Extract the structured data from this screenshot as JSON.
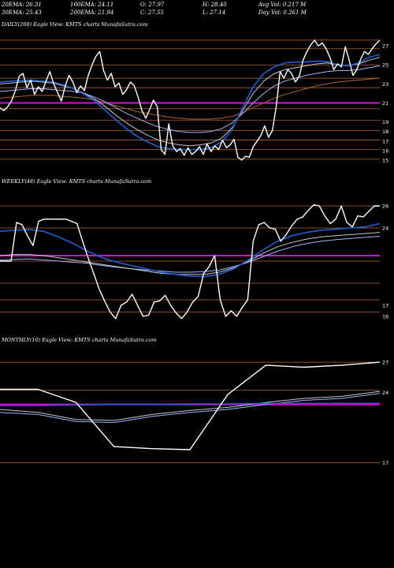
{
  "stats": {
    "ema20": "20EMA: 26.31",
    "ema100": "100EMA: 24.11",
    "open": "O: 27.97",
    "high": "H: 28.40",
    "avg_vol": "Avg Vol: 0.217 M",
    "ema30": "30EMA: 25.43",
    "ema200": "200EMA: 21.94",
    "close": "C: 27.55",
    "low": "L: 27.14",
    "day_vol": "Day Vol: 0.261 M"
  },
  "colors": {
    "background": "#000000",
    "price": "#ffffff",
    "ema_fast": "#1f5fd6",
    "ema_mid": "#c8c8c8",
    "ema_slow": "#a0b4ff",
    "ema_long": "#b06030",
    "support": "#e000e0",
    "gridline": "#b8642c"
  },
  "chart_data": [
    {
      "type": "line",
      "title": "DAILY(208) Eagle   View: KMTS charts MunafaSutra.com",
      "ylim": [
        14,
        28.5
      ],
      "levels": [
        27,
        25,
        23,
        21,
        19,
        18,
        17,
        16,
        15
      ],
      "hlines": [
        27.6,
        26.7,
        25,
        23.6,
        22.6,
        20.4,
        19.2,
        18.1,
        17.1,
        16.1,
        15.1
      ],
      "support": 21,
      "series": [
        {
          "role": "price",
          "values": [
            20.5,
            20.2,
            20.6,
            21.2,
            22.3,
            23.8,
            24.1,
            22.6,
            23.4,
            21.9,
            22.7,
            22.2,
            23.3,
            24.3,
            23.0,
            22.1,
            21.2,
            22.8,
            23.9,
            23.2,
            22.1,
            22.8,
            22.3,
            23.9,
            25.0,
            25.9,
            26.4,
            24.4,
            23.4,
            24.1,
            22.7,
            23.1,
            21.9,
            22.4,
            23.2,
            22.8,
            21.6,
            20.2,
            19.4,
            20.3,
            21.3,
            20.6,
            16.1,
            15.6,
            18.8,
            16.5,
            15.9,
            16.2,
            15.5,
            16.3,
            15.6,
            15.9,
            16.4,
            15.6,
            16.7,
            15.9,
            16.5,
            16.1,
            17.1,
            16.3,
            16.6,
            17.2,
            15.3,
            15.0,
            15.4,
            15.3,
            16.4,
            17.0,
            17.6,
            18.6,
            17.4,
            18.1,
            20.6,
            24.3,
            23.6,
            24.5,
            24.1,
            23.2,
            23.8,
            25.5,
            26.4,
            27.1,
            27.6,
            27.0,
            27.3,
            26.7,
            25.8,
            24.5,
            25.1,
            24.8,
            26.9,
            25.5,
            23.9,
            24.5,
            25.6,
            26.4,
            26.1,
            26.7,
            27.2,
            27.6
          ]
        },
        {
          "role": "ema-fast",
          "values": [
            23.2,
            23.3,
            23.35,
            23.4,
            23.3,
            23.2,
            22.9,
            22.5,
            21.9,
            21.2,
            20.2,
            19.2,
            18.3,
            17.5,
            16.9,
            16.4,
            16.2,
            16.1,
            16.1,
            16.1,
            16.3,
            16.9,
            18.2,
            20.5,
            22.7,
            24.1,
            24.8,
            25.2,
            25.3,
            25.3,
            25.4,
            25.35,
            25.0,
            24.9,
            25.2,
            25.8,
            26.1
          ]
        },
        {
          "role": "ema-mid",
          "values": [
            23.0,
            23.1,
            23.2,
            23.3,
            23.2,
            23.1,
            22.8,
            22.5,
            22.0,
            21.4,
            20.6,
            19.7,
            18.9,
            18.2,
            17.6,
            17.1,
            16.8,
            16.6,
            16.5,
            16.6,
            16.8,
            17.3,
            18.4,
            20.2,
            22.0,
            23.3,
            24.1,
            24.5,
            24.7,
            24.9,
            25.1,
            25.2,
            25.0,
            24.9,
            25.1,
            25.5,
            25.8
          ]
        },
        {
          "role": "ema-slow",
          "values": [
            22.2,
            22.3,
            22.4,
            22.5,
            22.5,
            22.4,
            22.3,
            22.2,
            22.0,
            21.6,
            21.1,
            20.5,
            19.9,
            19.4,
            18.9,
            18.5,
            18.2,
            18.0,
            17.9,
            17.9,
            18.0,
            18.3,
            18.9,
            19.9,
            21.0,
            22.0,
            22.8,
            23.3,
            23.6,
            23.9,
            24.1,
            24.3,
            24.4,
            24.4,
            24.5,
            24.7,
            24.9
          ]
        },
        {
          "role": "ema-long",
          "values": [
            21.5,
            21.6,
            21.7,
            21.8,
            21.8,
            21.8,
            21.7,
            21.6,
            21.5,
            21.3,
            21.0,
            20.7,
            20.4,
            20.1,
            19.9,
            19.7,
            19.5,
            19.4,
            19.3,
            19.3,
            19.3,
            19.4,
            19.6,
            20.0,
            20.5,
            21.0,
            21.5,
            21.9,
            22.2,
            22.5,
            22.8,
            23.0,
            23.2,
            23.3,
            23.4,
            23.5,
            23.6
          ]
        }
      ]
    },
    {
      "type": "line",
      "title": "WEEKLY(48) Eagle   View: KMTS charts MunafaSutra.com",
      "ylim": [
        15,
        27.5
      ],
      "levels": [
        26,
        24,
        17,
        16
      ],
      "hlines": [
        26,
        24,
        21,
        19,
        17.5,
        16.4
      ],
      "support": 21.5,
      "series": [
        {
          "role": "price",
          "values": [
            21,
            21,
            21,
            24.5,
            24.3,
            23.3,
            22.4,
            24.6,
            24.8,
            24.8,
            24.8,
            24.8,
            24.8,
            24.6,
            24.4,
            22.8,
            21.3,
            19.9,
            18.5,
            17.4,
            16.4,
            15.8,
            17.0,
            17.3,
            18.0,
            17.0,
            16.0,
            16.1,
            17.3,
            17.4,
            17.9,
            17.0,
            16.3,
            15.8,
            16.4,
            17.3,
            17.8,
            19.9,
            20.5,
            21.5,
            17.5,
            16.0,
            16.5,
            16.0,
            16.8,
            17.5,
            22.8,
            24.3,
            24.5,
            24.0,
            23.9,
            22.8,
            23.4,
            24.2,
            24.8,
            25.0,
            25.6,
            26.1,
            26.0,
            25.1,
            24.4,
            24.8,
            26.0,
            24.5,
            24.1,
            25.1,
            25.0,
            25.5,
            26.0,
            26.0
          ]
        },
        {
          "role": "ema-fast",
          "values": [
            23.7,
            23.8,
            23.85,
            23.7,
            23.2,
            22.6,
            21.9,
            21.3,
            20.9,
            20.6,
            20.3,
            20.0,
            19.8,
            19.65,
            19.6,
            19.8,
            20.3,
            21.1,
            22.0,
            22.8,
            23.3,
            23.6,
            23.8,
            23.9,
            24.0,
            24.1,
            24.4
          ]
        },
        {
          "role": "ema-mid",
          "values": [
            21.5,
            21.6,
            21.6,
            21.5,
            21.3,
            21.1,
            20.9,
            20.7,
            20.5,
            20.3,
            20.1,
            19.9,
            19.8,
            19.8,
            19.8,
            20.0,
            20.4,
            21.0,
            21.7,
            22.3,
            22.7,
            23.0,
            23.2,
            23.3,
            23.4,
            23.5,
            23.6
          ]
        },
        {
          "role": "ema-slow",
          "values": [
            21.1,
            21.15,
            21.2,
            21.1,
            21.0,
            20.9,
            20.8,
            20.6,
            20.45,
            20.3,
            20.2,
            20.1,
            20.0,
            20.0,
            20.05,
            20.2,
            20.5,
            20.9,
            21.4,
            21.9,
            22.3,
            22.6,
            22.8,
            22.95,
            23.05,
            23.15,
            23.25
          ]
        }
      ]
    },
    {
      "type": "line",
      "title": "MONTHLY(10) Eagle   View: KMTS charts MunafaSutra.com",
      "ylim": [
        15,
        28.5
      ],
      "levels": [
        27,
        24,
        17
      ],
      "hlines": [
        27,
        24.2,
        22.8,
        17
      ],
      "support": 22.8,
      "series": [
        {
          "role": "price",
          "values": [
            24.3,
            24.3,
            23.0,
            18.6,
            18.4,
            18.3,
            23.8,
            26.7,
            26.5,
            26.7,
            27.0
          ]
        },
        {
          "role": "ema-fast",
          "values": [
            22.7,
            22.7,
            22.75,
            22.8,
            22.8,
            22.85,
            22.85,
            22.9,
            22.9,
            22.9,
            22.9
          ]
        },
        {
          "role": "ema-mid",
          "values": [
            22.3,
            22.0,
            21.3,
            21.2,
            21.8,
            22.2,
            22.5,
            23.0,
            23.4,
            23.6,
            24.1
          ]
        },
        {
          "role": "ema-slow",
          "values": [
            22.0,
            21.8,
            21.1,
            21.0,
            21.6,
            22.0,
            22.3,
            22.8,
            23.2,
            23.4,
            23.9
          ]
        }
      ]
    }
  ]
}
